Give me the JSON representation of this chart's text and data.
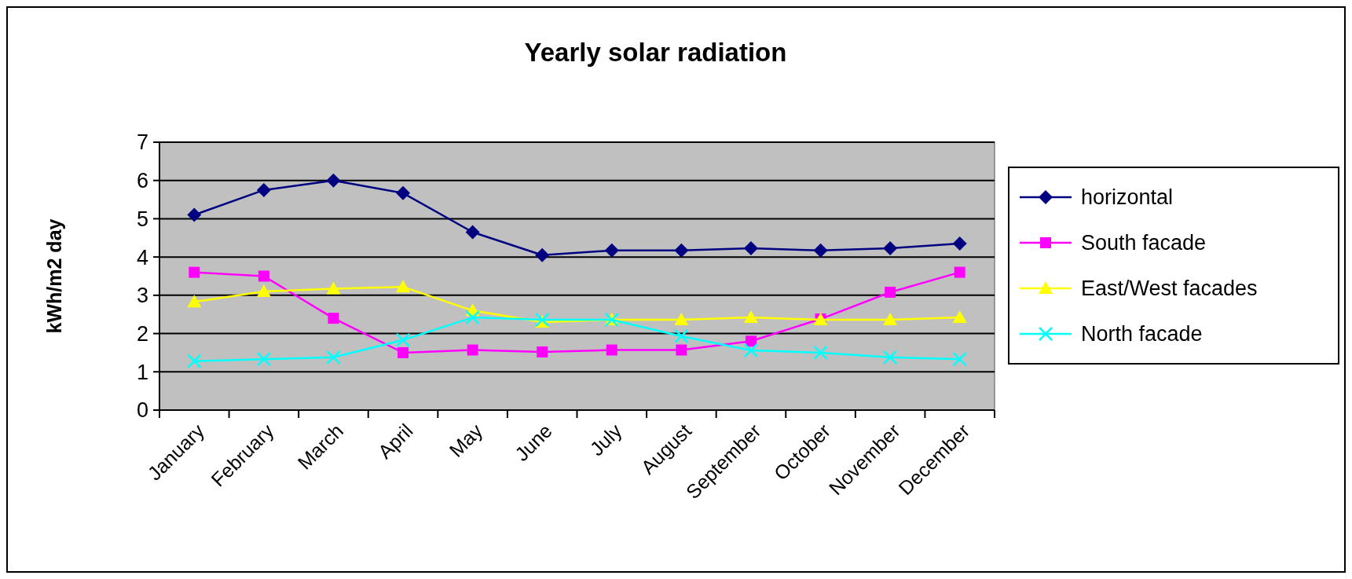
{
  "chart_data": {
    "type": "line",
    "title": "Yearly solar radiation",
    "ylabel": "kWh/m2 day",
    "categories": [
      "January",
      "February",
      "March",
      "April",
      "May",
      "June",
      "July",
      "August",
      "September",
      "October",
      "November",
      "December"
    ],
    "series": [
      {
        "name": "horizontal",
        "color": "#000080",
        "marker": "diamond",
        "values": [
          5.1,
          5.75,
          6.0,
          5.67,
          4.65,
          4.05,
          4.17,
          4.17,
          4.23,
          4.17,
          4.23,
          4.35
        ]
      },
      {
        "name": "South facade",
        "color": "#ff00ff",
        "marker": "square",
        "values": [
          3.6,
          3.5,
          2.4,
          1.5,
          1.57,
          1.52,
          1.57,
          1.57,
          1.8,
          2.38,
          3.08,
          3.6
        ]
      },
      {
        "name": "East/West facades",
        "color": "#ffff00",
        "marker": "triangle",
        "values": [
          2.83,
          3.1,
          3.17,
          3.22,
          2.6,
          2.3,
          2.36,
          2.36,
          2.42,
          2.36,
          2.36,
          2.42
        ]
      },
      {
        "name": "North facade",
        "color": "#00ffff",
        "marker": "cross",
        "values": [
          1.28,
          1.33,
          1.38,
          1.83,
          2.42,
          2.36,
          2.36,
          1.93,
          1.56,
          1.5,
          1.38,
          1.33
        ]
      }
    ],
    "ylim": [
      0,
      7
    ],
    "yticks": [
      0,
      1,
      2,
      3,
      4,
      5,
      6,
      7
    ],
    "grid": "y",
    "legend": "right"
  }
}
